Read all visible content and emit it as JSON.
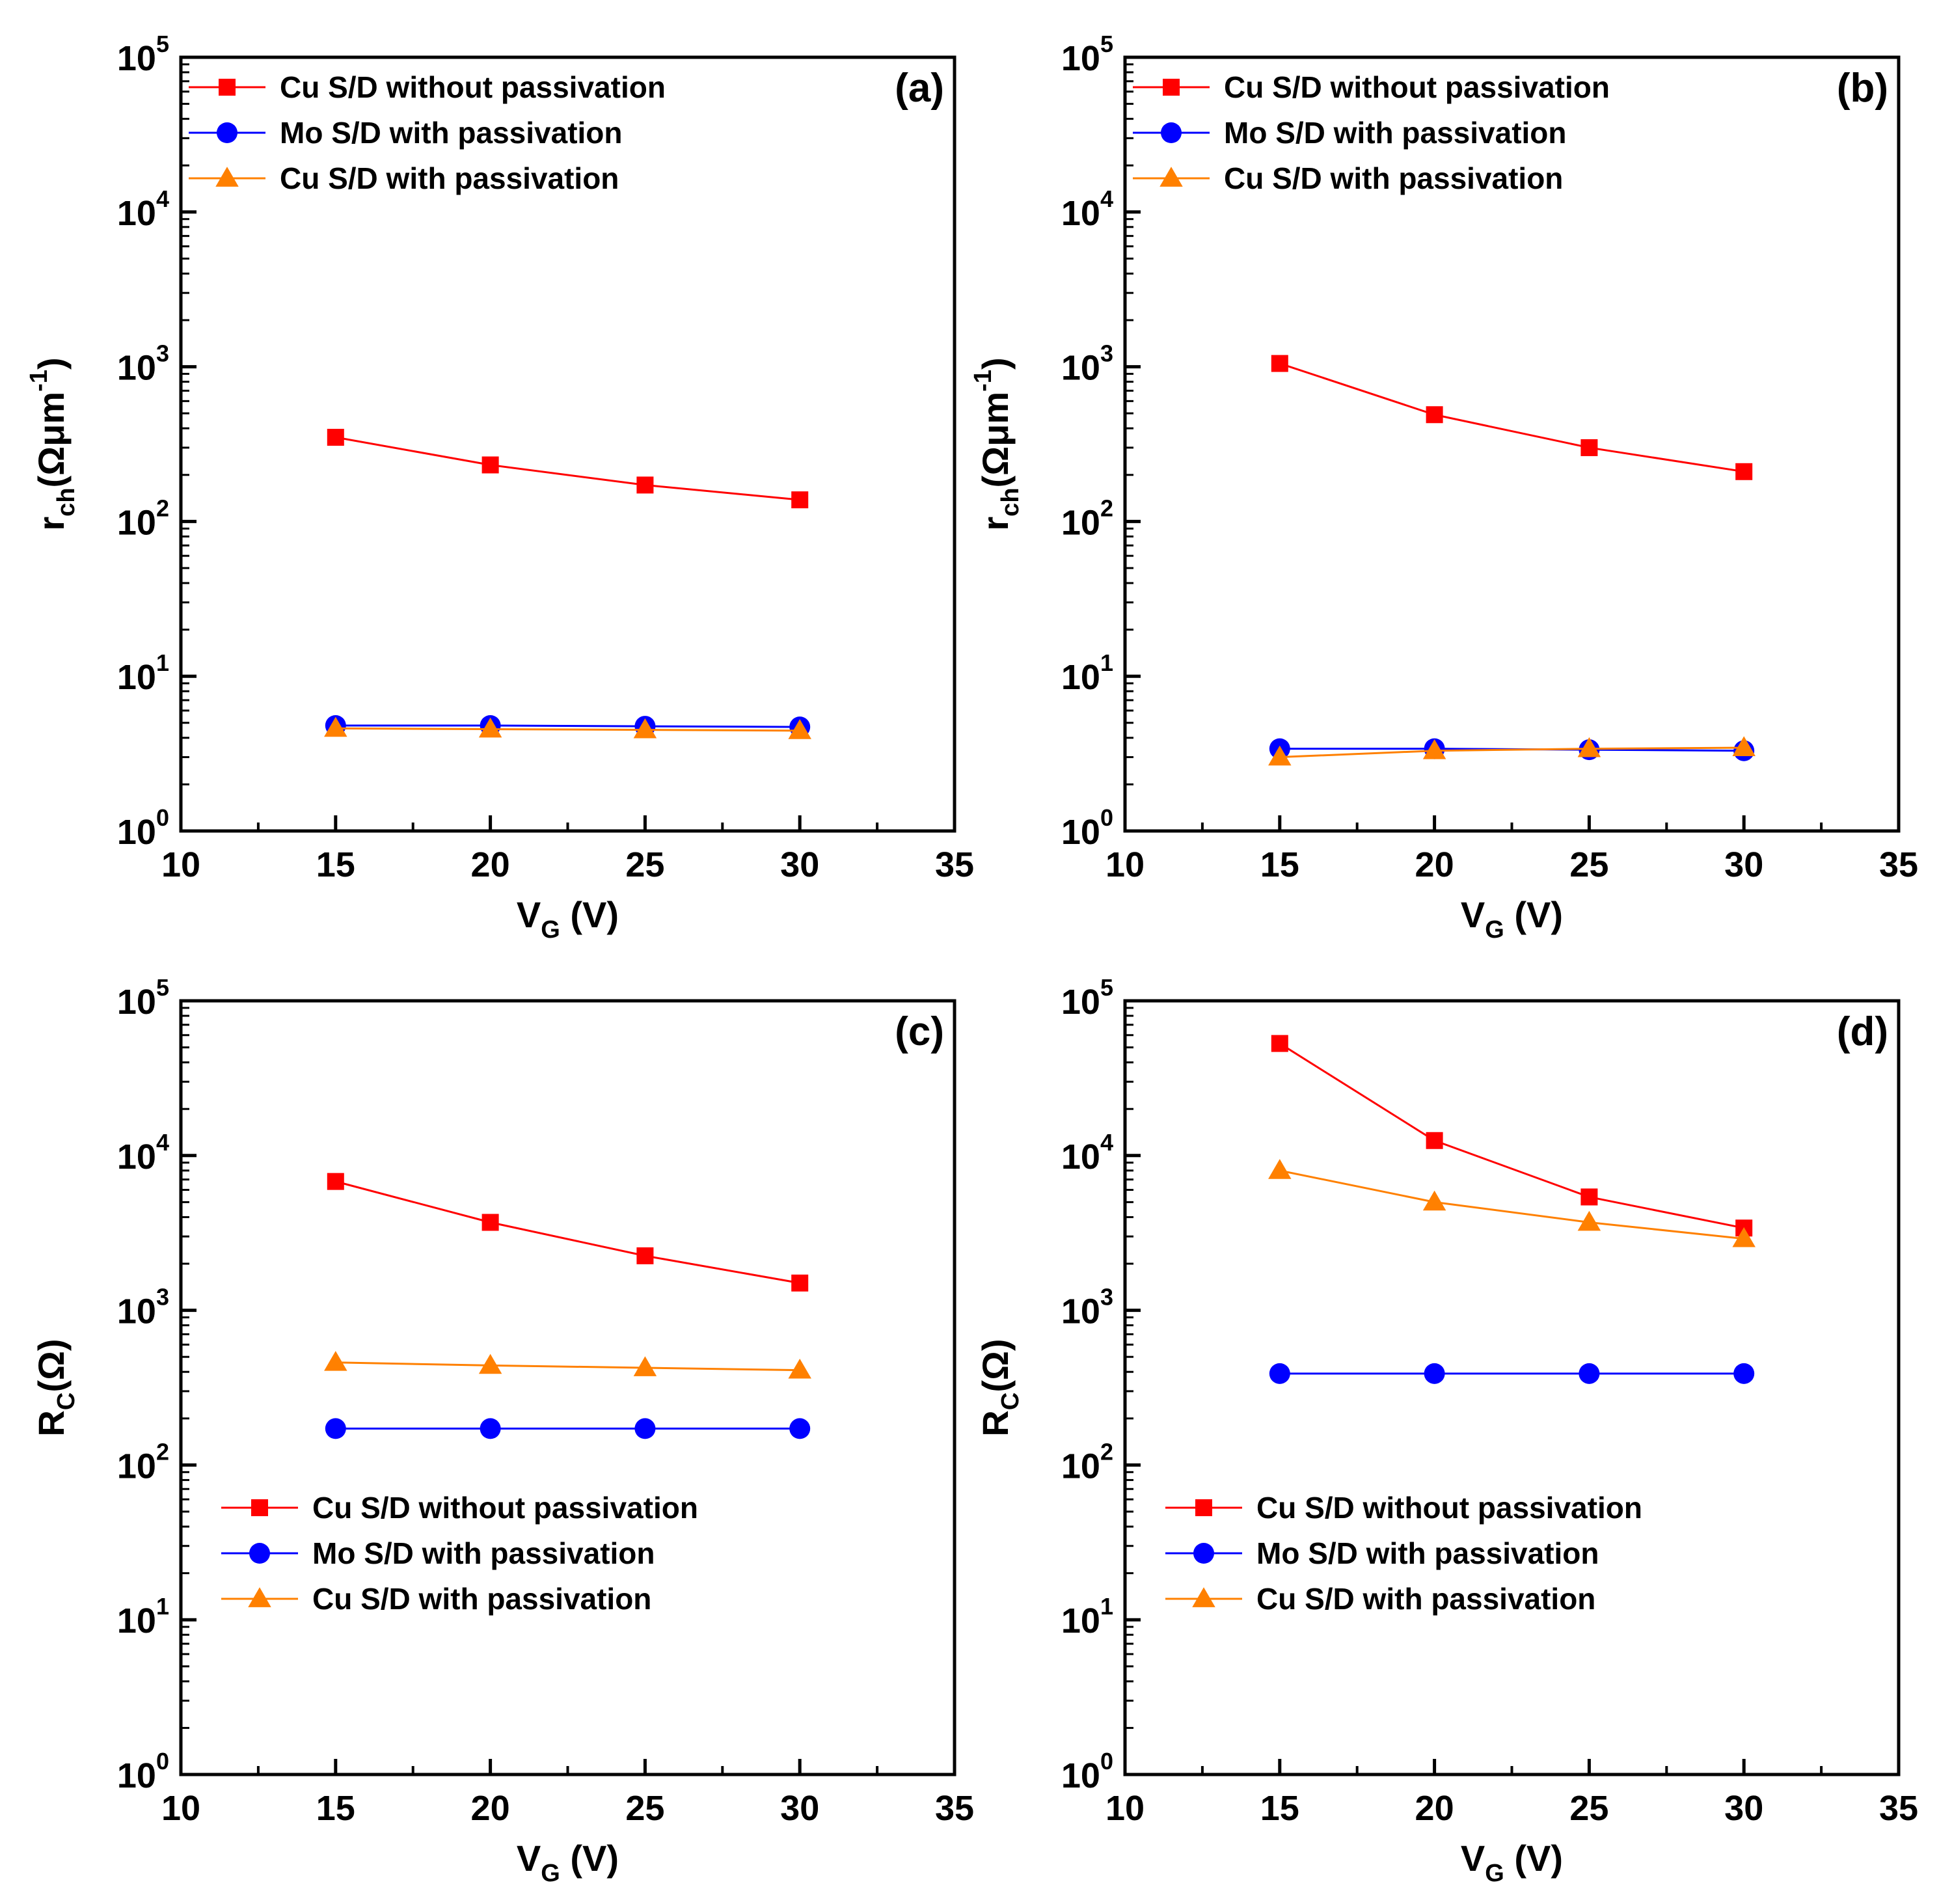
{
  "chart_data": [
    {
      "panel": "(a)",
      "type": "line",
      "x": [
        15,
        20,
        25,
        30
      ],
      "xlim": [
        10,
        35
      ],
      "xticks": [
        "10",
        "15",
        "20",
        "25",
        "30",
        "35"
      ],
      "yscale": "log",
      "ylim": [
        1,
        100000
      ],
      "ytick_exponents": [
        "0",
        "1",
        "2",
        "3",
        "4",
        "5"
      ],
      "ytick_base": "10",
      "xlabel": {
        "main": "V",
        "sub": "G",
        "rest": " (V)"
      },
      "ylabel": {
        "main": "r",
        "sub": "ch",
        "rest": "(Ωμm",
        "sup": "-1",
        "close": ")"
      },
      "legend_position": "top-left",
      "series": [
        {
          "name": "Cu S/D without passivation",
          "color": "#ff0000",
          "marker": "square",
          "values": [
            350,
            232,
            172,
            138
          ]
        },
        {
          "name": "Mo S/D with passivation",
          "color": "#0000ff",
          "marker": "circle",
          "values": [
            4.8,
            4.8,
            4.75,
            4.7
          ]
        },
        {
          "name": "Cu S/D with passivation",
          "color": "#ff8000",
          "marker": "triangle",
          "values": [
            4.6,
            4.55,
            4.5,
            4.45
          ]
        }
      ]
    },
    {
      "panel": "(b)",
      "type": "line",
      "x": [
        15,
        20,
        25,
        30
      ],
      "xlim": [
        10,
        35
      ],
      "xticks": [
        "10",
        "15",
        "20",
        "25",
        "30",
        "35"
      ],
      "yscale": "log",
      "ylim": [
        1,
        100000
      ],
      "ytick_exponents": [
        "0",
        "1",
        "2",
        "3",
        "4",
        "5"
      ],
      "ytick_base": "10",
      "xlabel": {
        "main": "V",
        "sub": "G",
        "rest": " (V)"
      },
      "ylabel": {
        "main": "r",
        "sub": "ch",
        "rest": "(Ωμm",
        "sup": "-1",
        "close": ")"
      },
      "legend_position": "top-left",
      "series": [
        {
          "name": "Cu S/D without passivation",
          "color": "#ff0000",
          "marker": "square",
          "values": [
            1050,
            490,
            300,
            210
          ]
        },
        {
          "name": "Mo S/D with passivation",
          "color": "#0000ff",
          "marker": "circle",
          "values": [
            3.4,
            3.4,
            3.35,
            3.3
          ]
        },
        {
          "name": "Cu S/D with passivation",
          "color": "#ff8000",
          "marker": "triangle",
          "values": [
            3.0,
            3.3,
            3.4,
            3.45
          ]
        }
      ]
    },
    {
      "panel": "(c)",
      "type": "line",
      "x": [
        15,
        20,
        25,
        30
      ],
      "xlim": [
        10,
        35
      ],
      "xticks": [
        "10",
        "15",
        "20",
        "25",
        "30",
        "35"
      ],
      "yscale": "log",
      "ylim": [
        1,
        100000
      ],
      "ytick_exponents": [
        "0",
        "1",
        "2",
        "3",
        "4",
        "5"
      ],
      "ytick_base": "10",
      "xlabel": {
        "main": "V",
        "sub": "G",
        "rest": " (V)"
      },
      "ylabel": {
        "main": "R",
        "sub": "C",
        "rest": "(Ω)",
        "sup": "",
        "close": ""
      },
      "legend_position": "bottom-left",
      "series": [
        {
          "name": "Cu S/D without passivation",
          "color": "#ff0000",
          "marker": "square",
          "values": [
            6800,
            3700,
            2250,
            1500
          ]
        },
        {
          "name": "Mo S/D with passivation",
          "color": "#0000ff",
          "marker": "circle",
          "values": [
            172,
            172,
            172,
            172
          ]
        },
        {
          "name": "Cu S/D with passivation",
          "color": "#ff8000",
          "marker": "triangle",
          "values": [
            460,
            440,
            425,
            410
          ]
        }
      ]
    },
    {
      "panel": "(d)",
      "type": "line",
      "x": [
        15,
        20,
        25,
        30
      ],
      "xlim": [
        10,
        35
      ],
      "xticks": [
        "10",
        "15",
        "20",
        "25",
        "30",
        "35"
      ],
      "yscale": "log",
      "ylim": [
        1,
        100000
      ],
      "ytick_exponents": [
        "0",
        "1",
        "2",
        "3",
        "4",
        "5"
      ],
      "ytick_base": "10",
      "xlabel": {
        "main": "V",
        "sub": "G",
        "rest": " (V)"
      },
      "ylabel": {
        "main": "R",
        "sub": "C",
        "rest": "(Ω)",
        "sup": "",
        "close": ""
      },
      "legend_position": "bottom-left",
      "series": [
        {
          "name": "Cu S/D without passivation",
          "color": "#ff0000",
          "marker": "square",
          "values": [
            53000,
            12500,
            5400,
            3400
          ]
        },
        {
          "name": "Mo S/D with passivation",
          "color": "#0000ff",
          "marker": "circle",
          "values": [
            390,
            390,
            390,
            390
          ]
        },
        {
          "name": "Cu S/D with passivation",
          "color": "#ff8000",
          "marker": "triangle",
          "values": [
            8000,
            5000,
            3700,
            2900
          ]
        }
      ]
    }
  ]
}
